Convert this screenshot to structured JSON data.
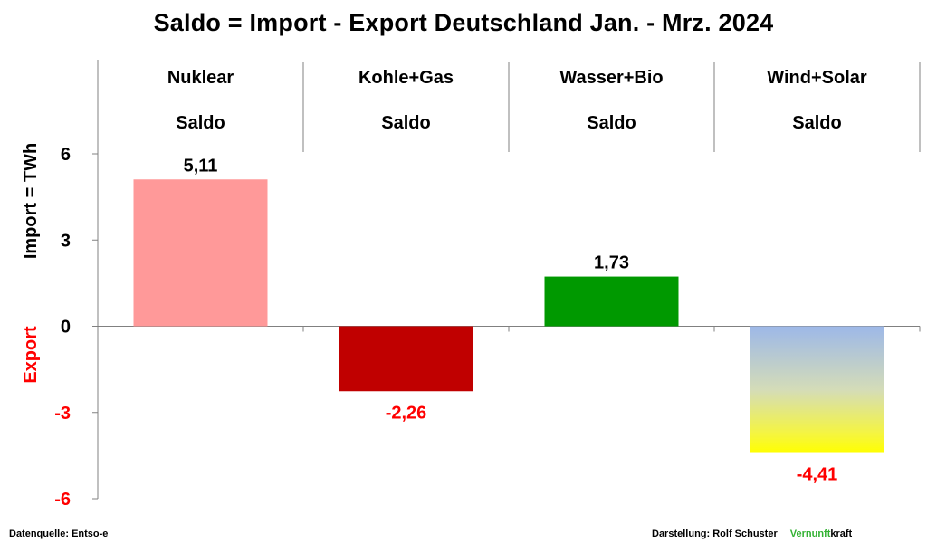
{
  "chart_data": {
    "type": "bar",
    "title": "Saldo = Import - Export Deutschland Jan. - Mrz. 2024",
    "ylabel_positive": "Import =  TWh",
    "ylabel_negative": "Export",
    "ylim": [
      -6,
      6
    ],
    "yticks": [
      6,
      3,
      0,
      -3,
      -6
    ],
    "ytick_labels": [
      "6",
      "3",
      "0",
      "-3",
      "-6"
    ],
    "grid": false,
    "categories": [
      "Nuklear",
      "Kohle+Gas",
      "Wasser+Bio",
      "Wind+Solar"
    ],
    "subheaders": [
      "Saldo",
      "Saldo",
      "Saldo",
      "Saldo"
    ],
    "values": [
      5.11,
      -2.26,
      1.73,
      -4.41
    ],
    "value_labels": [
      "5,11",
      "-2,26",
      "1,73",
      "-4,41"
    ],
    "bar_colors": [
      "#ff9999",
      "#c00000",
      "#009900",
      "gradient-blue-yellow"
    ]
  },
  "colors": {
    "negative_text": "#ff0000",
    "axis": "#808080",
    "gradient_top": "#9db8e8",
    "gradient_bottom": "#ffff00",
    "brand_green": "#33b233"
  },
  "footer": {
    "source": "Datenquelle: Entso-e",
    "credit": "Darstellung:  Rolf Schuster",
    "brand_part1": "Vernunft",
    "brand_part2": "kraft"
  }
}
